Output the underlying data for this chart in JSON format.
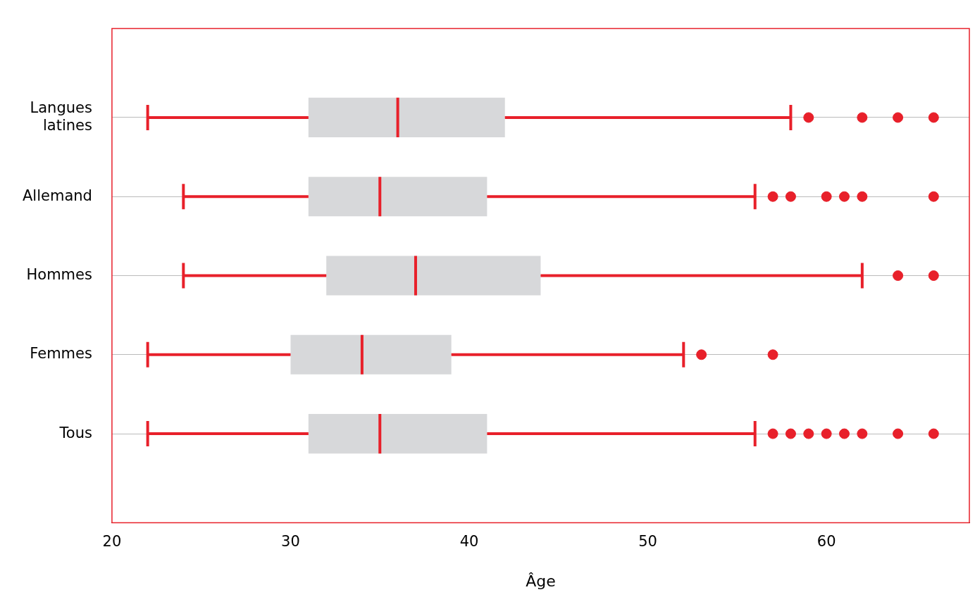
{
  "chart_data": {
    "type": "box",
    "orientation": "horizontal",
    "xlabel": "Âge",
    "categories": [
      "Langues latines",
      "Allemand",
      "Hommes",
      "Femmes",
      "Tous"
    ],
    "boxes": [
      {
        "low": 22,
        "q1": 31,
        "median": 36,
        "q3": 42,
        "high": 58,
        "outliers": [
          59,
          62,
          64,
          66
        ]
      },
      {
        "low": 24,
        "q1": 31,
        "median": 35,
        "q3": 41,
        "high": 56,
        "outliers": [
          57,
          58,
          60,
          61,
          62,
          66
        ]
      },
      {
        "low": 24,
        "q1": 32,
        "median": 37,
        "q3": 44,
        "high": 62,
        "outliers": [
          64,
          66
        ]
      },
      {
        "low": 22,
        "q1": 30,
        "median": 34,
        "q3": 39,
        "high": 52,
        "outliers": [
          53,
          57
        ]
      },
      {
        "low": 22,
        "q1": 31,
        "median": 35,
        "q3": 41,
        "high": 56,
        "outliers": [
          57,
          58,
          59,
          60,
          61,
          62,
          64,
          66
        ]
      }
    ],
    "colors": [
      "#d7d8da",
      "#d7d8da",
      "#d7d8da",
      "#d7d8da",
      "#d7d8da"
    ],
    "color": "#e8202a",
    "xlim": [
      20,
      68
    ],
    "xticks": [
      20,
      30,
      40,
      50,
      60
    ],
    "grid": "y",
    "marker": "circle",
    "legend": false
  }
}
